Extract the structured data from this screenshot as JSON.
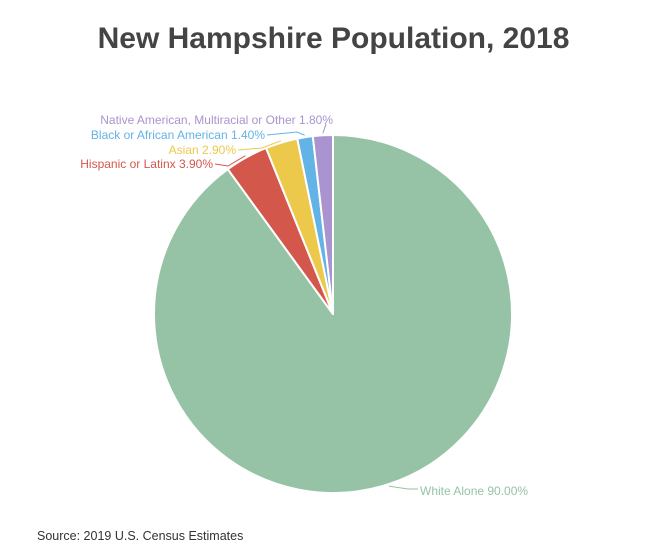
{
  "chart_data": {
    "type": "pie",
    "title": "New Hampshire Population, 2018",
    "source": "Source: 2019 U.S. Census Estimates",
    "slices": [
      {
        "label": "White Alone",
        "value": 90.0,
        "display": "White Alone 90.00%",
        "color": "#96c3a5"
      },
      {
        "label": "Hispanic or Latinx",
        "value": 3.9,
        "display": "Hispanic or Latinx 3.90%",
        "color": "#d4574c"
      },
      {
        "label": "Asian",
        "value": 2.9,
        "display": "Asian 2.90%",
        "color": "#ecc94b"
      },
      {
        "label": "Black or African American",
        "value": 1.4,
        "display": "Black or African American 1.40%",
        "color": "#63b3e7"
      },
      {
        "label": "Native American, Multiracial or Other",
        "value": 1.8,
        "display": "Native American, Multiracial or Other 1.80%",
        "color": "#a994cf"
      }
    ],
    "legend": "none"
  }
}
